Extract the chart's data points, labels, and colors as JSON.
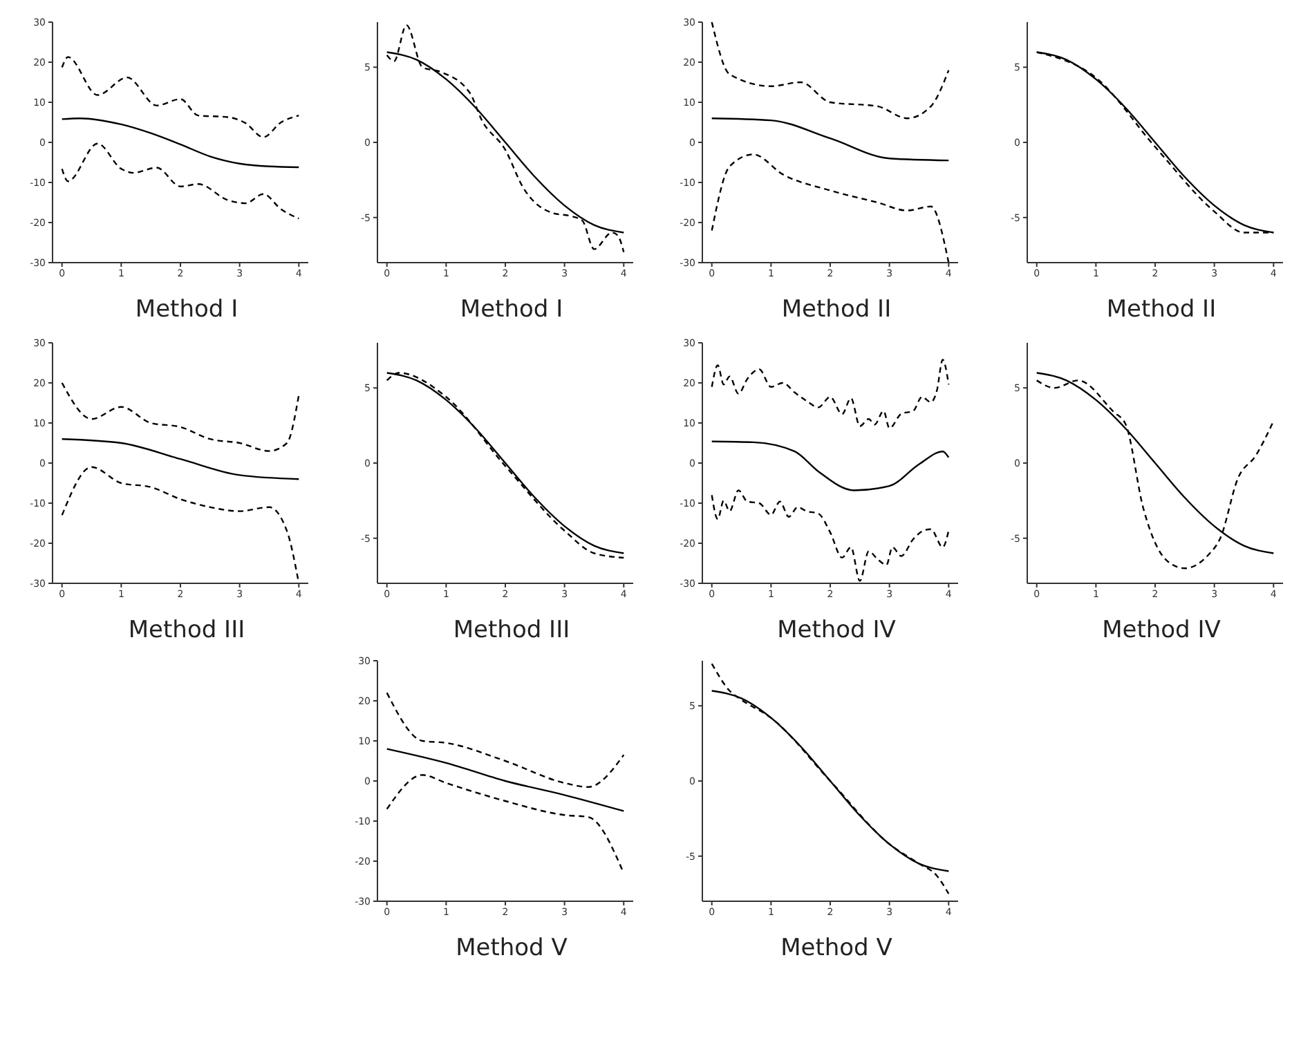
{
  "chart_data": [
    {
      "type": "line",
      "title": "Method I",
      "xlim": [
        -0.16,
        4.16
      ],
      "ylim": [
        -30,
        30
      ],
      "xticks": [
        0,
        1,
        2,
        3,
        4
      ],
      "yticks": [
        -30,
        -20,
        -10,
        0,
        10,
        20,
        30
      ],
      "grid": false,
      "legend": false,
      "series": [
        {
          "color": "#000000",
          "line_style": "solid",
          "x": [
            0,
            0.3,
            1,
            1.5,
            2,
            2.5,
            3,
            3.5,
            4
          ],
          "values": [
            5.8,
            6,
            4.5,
            2.3,
            -0.5,
            -3.5,
            -5.3,
            -6,
            -6.2
          ]
        },
        {
          "color": "#000000",
          "line_style": "dashed",
          "x": [
            0,
            0.1,
            0.6,
            1.1,
            1.6,
            2,
            2.3,
            2.8,
            3.1,
            3.4,
            3.7,
            4
          ],
          "values": [
            18.7,
            21.3,
            11.8,
            16.2,
            9.2,
            10.8,
            6.7,
            6.3,
            4.8,
            1.3,
            5,
            6.7
          ]
        },
        {
          "color": "#000000",
          "line_style": "dashed",
          "x": [
            0,
            0.1,
            0.6,
            1,
            1.2,
            1.6,
            2,
            2.3,
            2.8,
            3.1,
            3.4,
            3.7,
            4
          ],
          "values": [
            -6.6,
            -9.7,
            -0.3,
            -6.6,
            -7.6,
            -6.3,
            -11,
            -10.4,
            -14.4,
            -15.2,
            -12.9,
            -16.7,
            -19
          ]
        }
      ]
    },
    {
      "type": "line",
      "title": "Method I",
      "xlim": [
        -0.16,
        4.16
      ],
      "ylim": [
        -8,
        8
      ],
      "xticks": [
        0,
        1,
        2,
        3,
        4
      ],
      "yticks": [
        -5,
        0,
        5
      ],
      "grid": false,
      "legend": false,
      "series": [
        {
          "color": "#000000",
          "line_style": "solid",
          "x": [
            0,
            0.5,
            1,
            1.5,
            2,
            2.5,
            3,
            3.5,
            4
          ],
          "values": [
            6,
            5.5,
            4.2,
            2.3,
            0,
            -2.3,
            -4.2,
            -5.5,
            -6
          ]
        },
        {
          "color": "#000000",
          "line_style": "dashed",
          "x": [
            0,
            0.12,
            0.33,
            0.6,
            0.9,
            1.4,
            1.6,
            2,
            2.3,
            2.8,
            3.1,
            3.3,
            3.5,
            3.8,
            3.9,
            4
          ],
          "values": [
            5.8,
            5.4,
            7.8,
            5,
            4.7,
            3.3,
            1.5,
            -0.5,
            -3,
            -4.7,
            -4.9,
            -5.2,
            -7.1,
            -6,
            -6.2,
            -7.3
          ]
        }
      ]
    },
    {
      "type": "line",
      "title": "Method II",
      "xlim": [
        -0.16,
        4.16
      ],
      "ylim": [
        -30,
        30
      ],
      "xticks": [
        0,
        1,
        2,
        3,
        4
      ],
      "yticks": [
        -30,
        -20,
        -10,
        0,
        10,
        20,
        30
      ],
      "grid": false,
      "legend": false,
      "series": [
        {
          "color": "#000000",
          "line_style": "solid",
          "x": [
            0,
            1,
            2,
            3,
            4
          ],
          "values": [
            6,
            5.5,
            1,
            -4,
            -4.5
          ]
        },
        {
          "color": "#000000",
          "line_style": "dashed",
          "x": [
            0,
            0.3,
            1,
            1.5,
            2,
            2.8,
            3.3,
            3.7,
            4
          ],
          "values": [
            30,
            17,
            14,
            15,
            10,
            9,
            6,
            9,
            18
          ]
        },
        {
          "color": "#000000",
          "line_style": "dashed",
          "x": [
            0,
            0.3,
            0.7,
            1.2,
            2,
            2.8,
            3.3,
            3.7,
            4
          ],
          "values": [
            -22,
            -6,
            -3,
            -8,
            -12,
            -15,
            -17,
            -16,
            -30
          ]
        }
      ]
    },
    {
      "type": "line",
      "title": "Method II",
      "xlim": [
        -0.16,
        4.16
      ],
      "ylim": [
        -8,
        8
      ],
      "xticks": [
        0,
        1,
        2,
        3,
        4
      ],
      "yticks": [
        -5,
        0,
        5
      ],
      "grid": false,
      "legend": false,
      "series": [
        {
          "color": "#000000",
          "line_style": "solid",
          "x": [
            0,
            0.5,
            1,
            1.5,
            2,
            2.5,
            3,
            3.5,
            4
          ],
          "values": [
            6,
            5.5,
            4.2,
            2.3,
            0,
            -2.3,
            -4.2,
            -5.5,
            -6
          ]
        },
        {
          "color": "#000000",
          "line_style": "dashed",
          "x": [
            0,
            1,
            2,
            3,
            3.5,
            4
          ],
          "values": [
            6,
            4.3,
            -0.3,
            -4.6,
            -6,
            -6
          ]
        }
      ]
    },
    {
      "type": "line",
      "title": "Method III",
      "xlim": [
        -0.16,
        4.16
      ],
      "ylim": [
        -30,
        30
      ],
      "xticks": [
        0,
        1,
        2,
        3,
        4
      ],
      "yticks": [
        -30,
        -20,
        -10,
        0,
        10,
        20,
        30
      ],
      "grid": false,
      "legend": false,
      "series": [
        {
          "color": "#000000",
          "line_style": "solid",
          "x": [
            0,
            1,
            2,
            3,
            4
          ],
          "values": [
            6,
            5,
            1,
            -3,
            -4
          ]
        },
        {
          "color": "#000000",
          "line_style": "dashed",
          "x": [
            0,
            0.5,
            1,
            1.5,
            2,
            2.5,
            3,
            3.5,
            3.8,
            4
          ],
          "values": [
            20,
            11,
            14,
            10,
            9,
            6,
            5,
            3,
            5,
            17
          ]
        },
        {
          "color": "#000000",
          "line_style": "dashed",
          "x": [
            0,
            0.5,
            1,
            1.5,
            2,
            2.5,
            3,
            3.5,
            3.8,
            4
          ],
          "values": [
            -13,
            -1,
            -5,
            -6,
            -9,
            -11,
            -12,
            -11,
            -17,
            -30
          ]
        }
      ]
    },
    {
      "type": "line",
      "title": "Method III",
      "xlim": [
        -0.16,
        4.16
      ],
      "ylim": [
        -8,
        8
      ],
      "xticks": [
        0,
        1,
        2,
        3,
        4
      ],
      "yticks": [
        -5,
        0,
        5
      ],
      "grid": false,
      "legend": false,
      "series": [
        {
          "color": "#000000",
          "line_style": "solid",
          "x": [
            0,
            0.5,
            1,
            1.5,
            2,
            2.5,
            3,
            3.5,
            4
          ],
          "values": [
            6,
            5.5,
            4.2,
            2.3,
            0,
            -2.3,
            -4.2,
            -5.5,
            -6
          ]
        },
        {
          "color": "#000000",
          "line_style": "dashed",
          "x": [
            0,
            0.2,
            1,
            2,
            3,
            3.5,
            4
          ],
          "values": [
            5.5,
            6,
            4.4,
            -0.2,
            -4.5,
            -6,
            -6.3
          ]
        }
      ]
    },
    {
      "type": "line",
      "title": "Method IV",
      "xlim": [
        -0.16,
        4.16
      ],
      "ylim": [
        -30,
        30
      ],
      "xticks": [
        0,
        1,
        2,
        3,
        4
      ],
      "yticks": [
        -30,
        -20,
        -10,
        0,
        10,
        20,
        30
      ],
      "grid": false,
      "legend": false,
      "series": [
        {
          "color": "#000000",
          "line_style": "solid",
          "x": [
            0,
            0.7,
            1.4,
            1.8,
            2.4,
            3,
            3.5,
            3.9,
            4
          ],
          "values": [
            5.4,
            5.2,
            2.9,
            -2.1,
            -6.8,
            -5.7,
            -0.3,
            2.9,
            1.4
          ]
        },
        {
          "color": "#000000",
          "line_style": "dashed",
          "x": [
            0,
            0.1,
            0.2,
            0.3,
            0.45,
            0.6,
            0.8,
            1,
            1.2,
            1.4,
            1.6,
            1.8,
            2,
            2.2,
            2.35,
            2.5,
            2.65,
            2.75,
            2.9,
            3,
            3.2,
            3.4,
            3.55,
            3.7,
            3.8,
            3.9,
            4
          ],
          "values": [
            19,
            24.4,
            19.6,
            21.6,
            17.3,
            21,
            23.4,
            19,
            20,
            17.6,
            15.5,
            13.9,
            16.5,
            12.2,
            16.2,
            9.2,
            11,
            9.6,
            13,
            8.7,
            12.3,
            13,
            16.5,
            15.2,
            18,
            25.8,
            19.6
          ]
        },
        {
          "color": "#000000",
          "line_style": "dashed",
          "x": [
            0,
            0.1,
            0.2,
            0.3,
            0.45,
            0.6,
            0.8,
            1,
            1.15,
            1.3,
            1.45,
            1.6,
            1.8,
            2,
            2.2,
            2.35,
            2.5,
            2.65,
            2.8,
            2.95,
            3.05,
            3.2,
            3.4,
            3.6,
            3.7,
            3.9,
            4
          ],
          "values": [
            -8,
            -14,
            -9.4,
            -12,
            -6.8,
            -9.6,
            -10,
            -12.9,
            -9.6,
            -13.4,
            -11,
            -12,
            -12.6,
            -17.3,
            -23.6,
            -21,
            -29.4,
            -22,
            -24,
            -25.4,
            -21,
            -23.2,
            -19,
            -16.7,
            -16.5,
            -21,
            -16.8
          ]
        }
      ]
    },
    {
      "type": "line",
      "title": "Method IV",
      "xlim": [
        -0.16,
        4.16
      ],
      "ylim": [
        -8,
        8
      ],
      "xticks": [
        0,
        1,
        2,
        3,
        4
      ],
      "yticks": [
        -5,
        0,
        5
      ],
      "grid": false,
      "legend": false,
      "series": [
        {
          "color": "#000000",
          "line_style": "solid",
          "x": [
            0,
            0.5,
            1,
            1.5,
            2,
            2.5,
            3,
            3.5,
            4
          ],
          "values": [
            6,
            5.5,
            4.2,
            2.3,
            0,
            -2.3,
            -4.2,
            -5.5,
            -6
          ]
        },
        {
          "color": "#000000",
          "line_style": "dashed",
          "x": [
            0,
            0.3,
            0.7,
            1.3,
            1.5,
            1.8,
            2.2,
            2.5,
            2.9,
            3.1,
            3.4,
            3.7,
            4
          ],
          "values": [
            5.5,
            5,
            5.5,
            3.4,
            2.6,
            -3,
            -6.5,
            -7,
            -6.1,
            -5,
            -1,
            0.5,
            2.8
          ]
        }
      ]
    },
    {
      "type": "line",
      "title": "Method V",
      "xlim": [
        -0.16,
        4.16
      ],
      "ylim": [
        -30,
        30
      ],
      "xticks": [
        0,
        1,
        2,
        3,
        4
      ],
      "yticks": [
        -30,
        -20,
        -10,
        0,
        10,
        20,
        30
      ],
      "grid": false,
      "legend": false,
      "series": [
        {
          "color": "#000000",
          "line_style": "solid",
          "x": [
            0,
            1,
            2,
            3,
            4
          ],
          "values": [
            8,
            4.5,
            0,
            -3.5,
            -7.5
          ]
        },
        {
          "color": "#000000",
          "line_style": "dashed",
          "x": [
            0,
            0.6,
            1,
            2,
            3,
            3.4,
            4
          ],
          "values": [
            22,
            10,
            9.5,
            5,
            -0.5,
            -1.5,
            6.5
          ]
        },
        {
          "color": "#000000",
          "line_style": "dashed",
          "x": [
            0,
            0.6,
            1,
            2,
            3,
            3.4,
            4
          ],
          "values": [
            -7,
            1.5,
            -0.5,
            -5,
            -8.5,
            -9,
            -23
          ]
        }
      ]
    },
    {
      "type": "line",
      "title": "Method V",
      "xlim": [
        -0.16,
        4.16
      ],
      "ylim": [
        -8,
        8
      ],
      "xticks": [
        0,
        1,
        2,
        3,
        4
      ],
      "yticks": [
        -5,
        0,
        5
      ],
      "grid": false,
      "legend": false,
      "series": [
        {
          "color": "#000000",
          "line_style": "solid",
          "x": [
            0,
            0.5,
            1,
            1.5,
            2,
            2.5,
            3,
            3.5,
            4
          ],
          "values": [
            6,
            5.5,
            4.2,
            2.3,
            0,
            -2.3,
            -4.2,
            -5.5,
            -6
          ]
        },
        {
          "color": "#000000",
          "line_style": "dashed",
          "x": [
            0,
            0.3,
            0.5,
            1,
            2,
            3,
            3.5,
            3.8,
            4
          ],
          "values": [
            7.8,
            6,
            5.4,
            4.2,
            0,
            -4.2,
            -5.5,
            -6.3,
            -7.5
          ]
        }
      ]
    }
  ]
}
